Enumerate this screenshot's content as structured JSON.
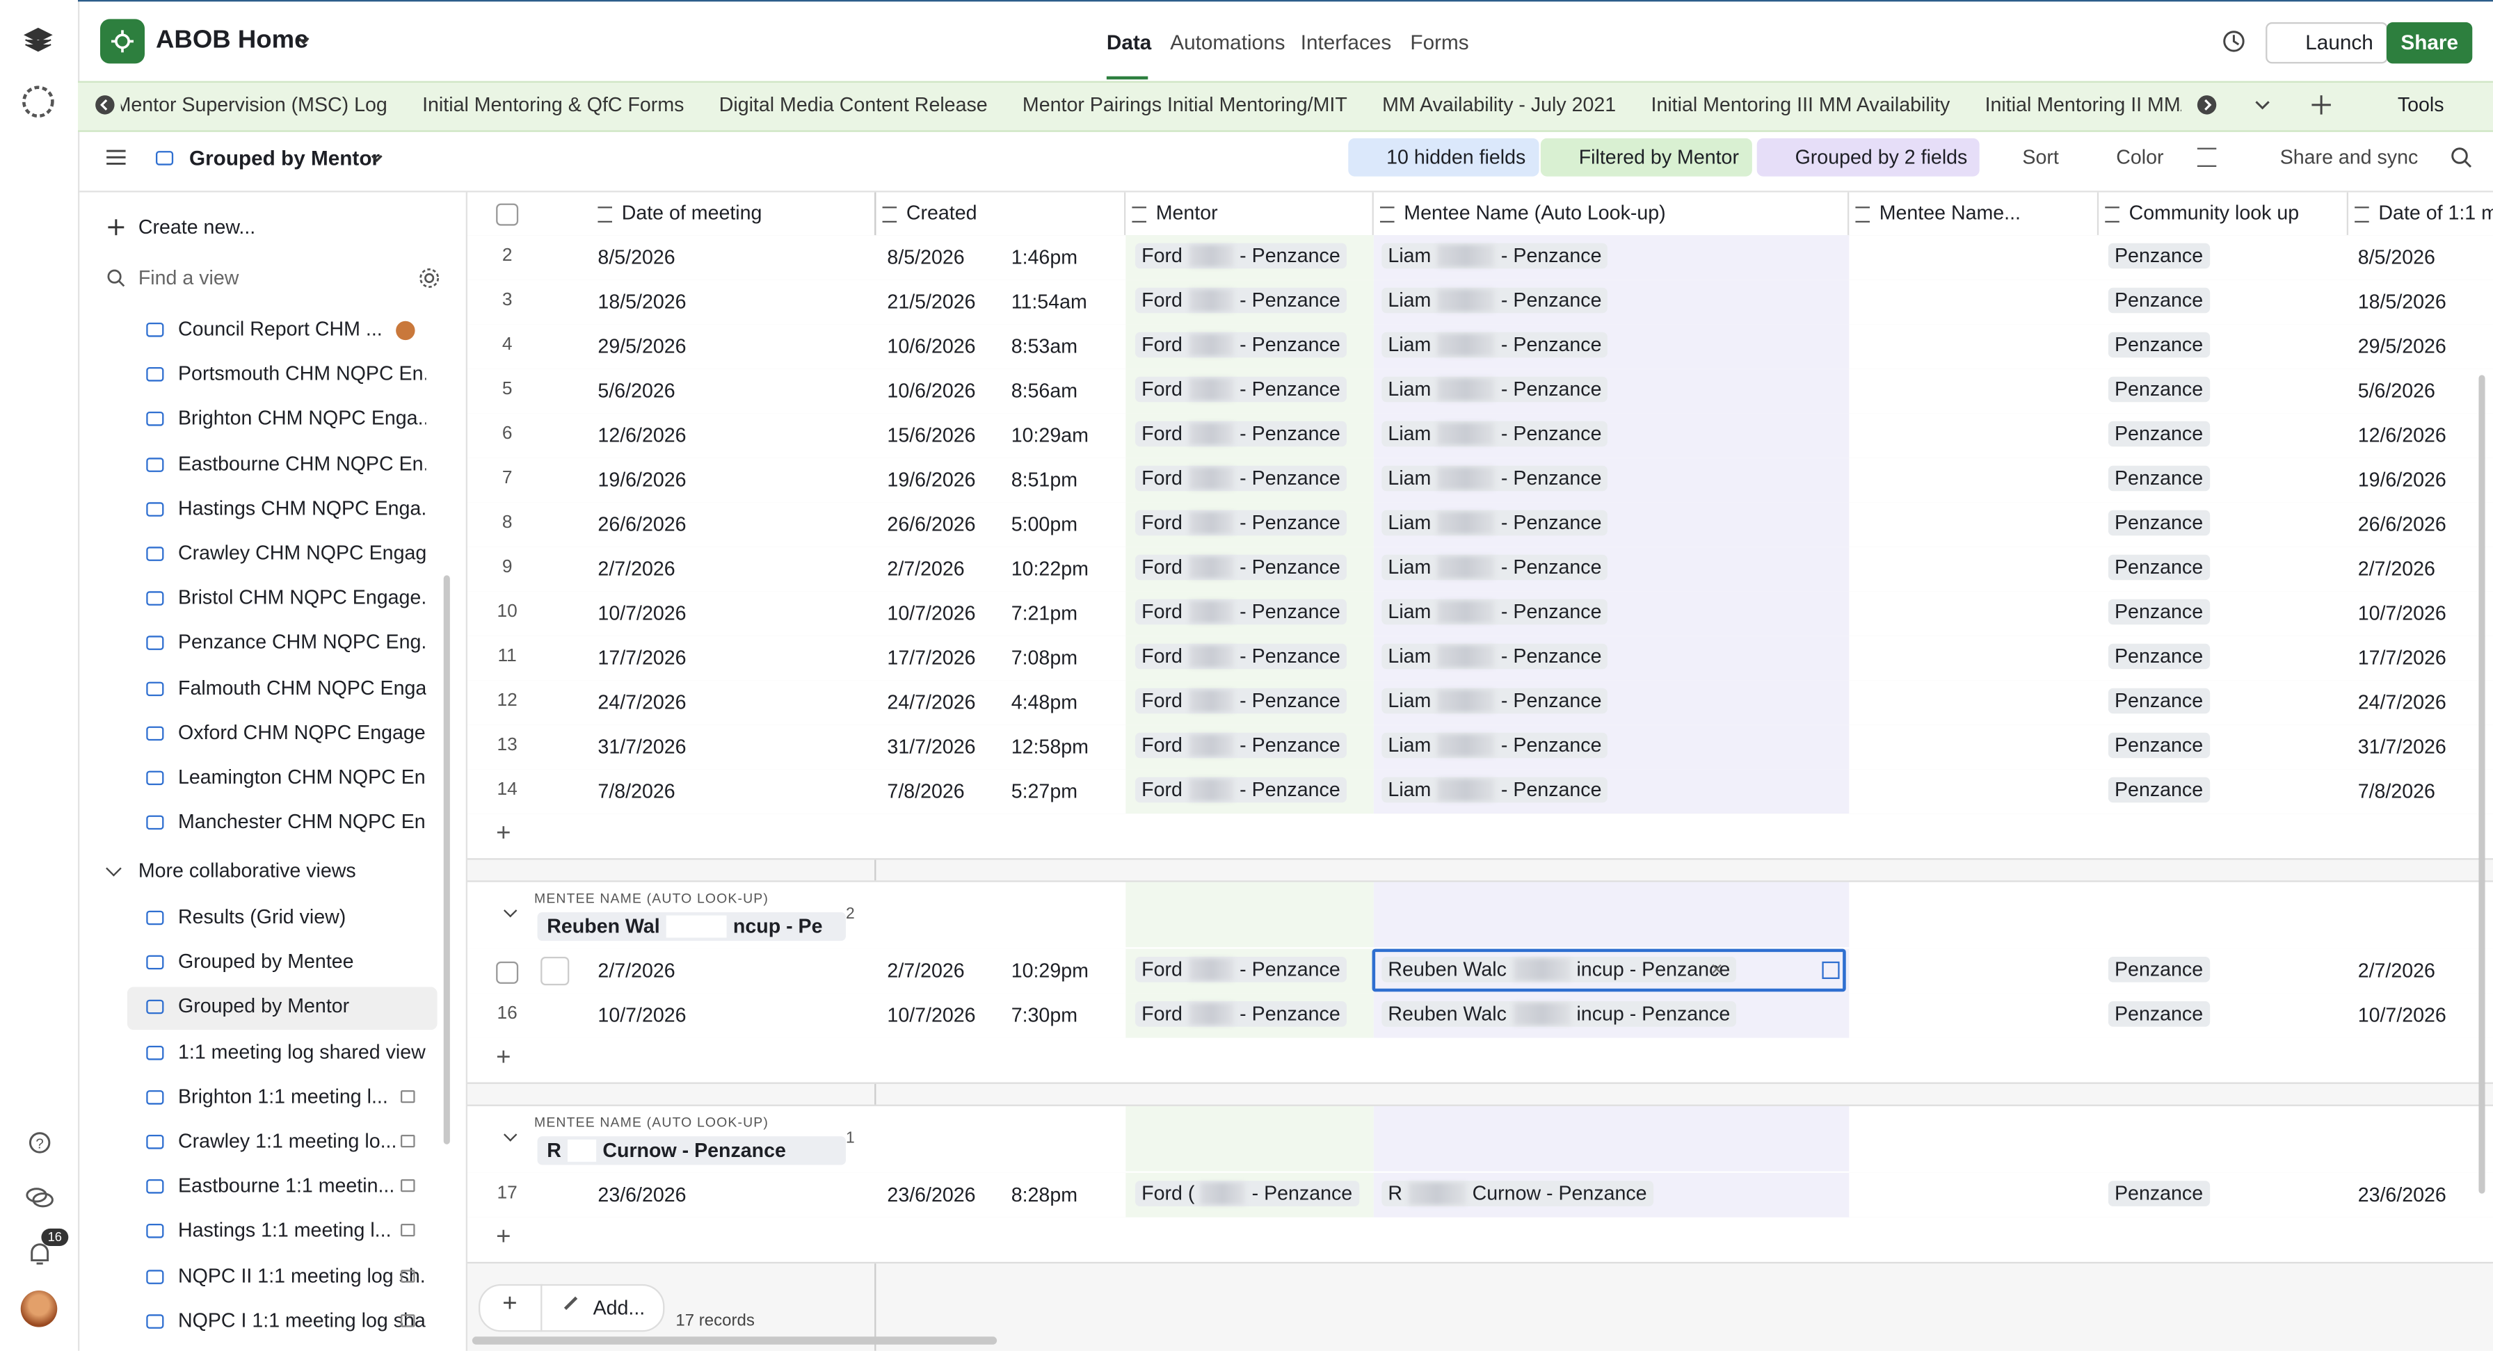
{
  "header": {
    "app_name": "ABOB Home",
    "nav": [
      "Data",
      "Automations",
      "Interfaces",
      "Forms"
    ],
    "launch": "Launch",
    "share": "Share"
  },
  "tables": {
    "tabs": [
      "Mentor Supervision (MSC) Log",
      "Initial Mentoring & QfC Forms",
      "Digital Media Content Release",
      "Mentor Pairings Initial Mentoring/MIT",
      "MM Availability - July 2021",
      "Initial Mentoring III MM Availability",
      "Initial Mentoring II MMAvailabilit"
    ],
    "tools": "Tools"
  },
  "toolbar": {
    "view_name": "Grouped by Mentor",
    "actions": [
      "10 hidden fields",
      "Filtered by Mentor",
      "Grouped by 2 fields",
      "Sort",
      "Color",
      "Share and sync"
    ]
  },
  "sidebar": {
    "create": "Create new...",
    "find": "Find a view",
    "views": [
      "Council Report CHM ...",
      "Portsmouth CHM NQPC En...",
      "Brighton CHM NQPC Enga...",
      "Eastbourne CHM NQPC En...",
      "Hastings CHM NQPC Enga...",
      "Crawley CHM NQPC Engag...",
      "Bristol CHM NQPC Engage...",
      "Penzance CHM NQPC Eng...",
      "Falmouth CHM NQPC Enga...",
      "Oxford CHM NQPC Engage...",
      "Leamington CHM NQPC En...",
      "Manchester CHM NQPC En..."
    ],
    "section": "More collaborative views",
    "collab_views": [
      "Results (Grid view)",
      "Grouped by Mentee",
      "Grouped by Mentor",
      "1:1 meeting log shared view",
      "Brighton 1:1 meeting l...",
      "Crawley 1:1 meeting lo...",
      "Eastbourne 1:1 meetin...",
      "Hastings 1:1 meeting l...",
      "NQPC II 1:1 meeting log sh...",
      "NQPC I 1:1 meeting log sha..."
    ],
    "notifications": "16"
  },
  "grid": {
    "columns": [
      "Date of meeting",
      "Created",
      "Mentor",
      "Mentee Name (Auto Look-up)",
      "Mentee Name...",
      "Community look up",
      "Date of 1:1 m"
    ],
    "groups": [
      {
        "rows": [
          [
            2,
            "8/5/2026",
            "8/5/2026",
            "1:46pm",
            "Ford",
            "- Penzance",
            "Liam",
            "- Penzance",
            "Penzance",
            "8/5/2026"
          ],
          [
            3,
            "18/5/2026",
            "21/5/2026",
            "11:54am",
            "Ford",
            "- Penzance",
            "Liam",
            "- Penzance",
            "Penzance",
            "18/5/2026"
          ],
          [
            4,
            "29/5/2026",
            "10/6/2026",
            "8:53am",
            "Ford",
            "- Penzance",
            "Liam",
            "- Penzance",
            "Penzance",
            "29/5/2026"
          ],
          [
            5,
            "5/6/2026",
            "10/6/2026",
            "8:56am",
            "Ford",
            "- Penzance",
            "Liam",
            "- Penzance",
            "Penzance",
            "5/6/2026"
          ],
          [
            6,
            "12/6/2026",
            "15/6/2026",
            "10:29am",
            "Ford",
            "- Penzance",
            "Liam",
            "- Penzance",
            "Penzance",
            "12/6/2026"
          ],
          [
            7,
            "19/6/2026",
            "19/6/2026",
            "8:51pm",
            "Ford",
            "- Penzance",
            "Liam",
            "- Penzance",
            "Penzance",
            "19/6/2026"
          ],
          [
            8,
            "26/6/2026",
            "26/6/2026",
            "5:00pm",
            "Ford",
            "- Penzance",
            "Liam",
            "- Penzance",
            "Penzance",
            "26/6/2026"
          ],
          [
            9,
            "2/7/2026",
            "2/7/2026",
            "10:22pm",
            "Ford",
            "- Penzance",
            "Liam",
            "- Penzance",
            "Penzance",
            "2/7/2026"
          ],
          [
            10,
            "10/7/2026",
            "10/7/2026",
            "7:21pm",
            "Ford",
            "- Penzance",
            "Liam",
            "- Penzance",
            "Penzance",
            "10/7/2026"
          ],
          [
            11,
            "17/7/2026",
            "17/7/2026",
            "7:08pm",
            "Ford",
            "- Penzance",
            "Liam",
            "- Penzance",
            "Penzance",
            "17/7/2026"
          ],
          [
            12,
            "24/7/2026",
            "24/7/2026",
            "4:48pm",
            "Ford",
            "- Penzance",
            "Liam",
            "- Penzance",
            "Penzance",
            "24/7/2026"
          ],
          [
            13,
            "31/7/2026",
            "31/7/2026",
            "12:58pm",
            "Ford",
            "- Penzance",
            "Liam",
            "- Penzance",
            "Penzance",
            "31/7/2026"
          ],
          [
            14,
            "7/8/2026",
            "7/8/2026",
            "5:27pm",
            "Ford",
            "- Penzance",
            "Liam",
            "- Penzance",
            "Penzance",
            "7/8/2026"
          ]
        ]
      },
      {
        "label": "MENTEE NAME (AUTO LOOK-UP)",
        "name_start": "Reuben Wal",
        "name_end": "ncup - Pe",
        "count": 2,
        "rows": [
          [
            null,
            "2/7/2026",
            "2/7/2026",
            "10:29pm",
            "Ford",
            "- Penzance",
            "Reuben Walc",
            "incup - Penzance",
            "Penzance",
            "2/7/2026"
          ],
          [
            16,
            "10/7/2026",
            "10/7/2026",
            "7:30pm",
            "Ford",
            "- Penzance",
            "Reuben Walc",
            "incup - Penzance",
            "Penzance",
            "10/7/2026"
          ]
        ]
      },
      {
        "label": "MENTEE NAME (AUTO LOOK-UP)",
        "name_start": "R",
        "name_end": "Curnow - Penzance",
        "count": 1,
        "rows": [
          [
            17,
            "23/6/2026",
            "23/6/2026",
            "8:28pm",
            "Ford (",
            "- Penzance",
            "R",
            "Curnow - Penzance",
            "Penzance",
            "23/6/2026"
          ]
        ]
      }
    ]
  },
  "footer": {
    "add": "Add...",
    "records": "17 records"
  }
}
